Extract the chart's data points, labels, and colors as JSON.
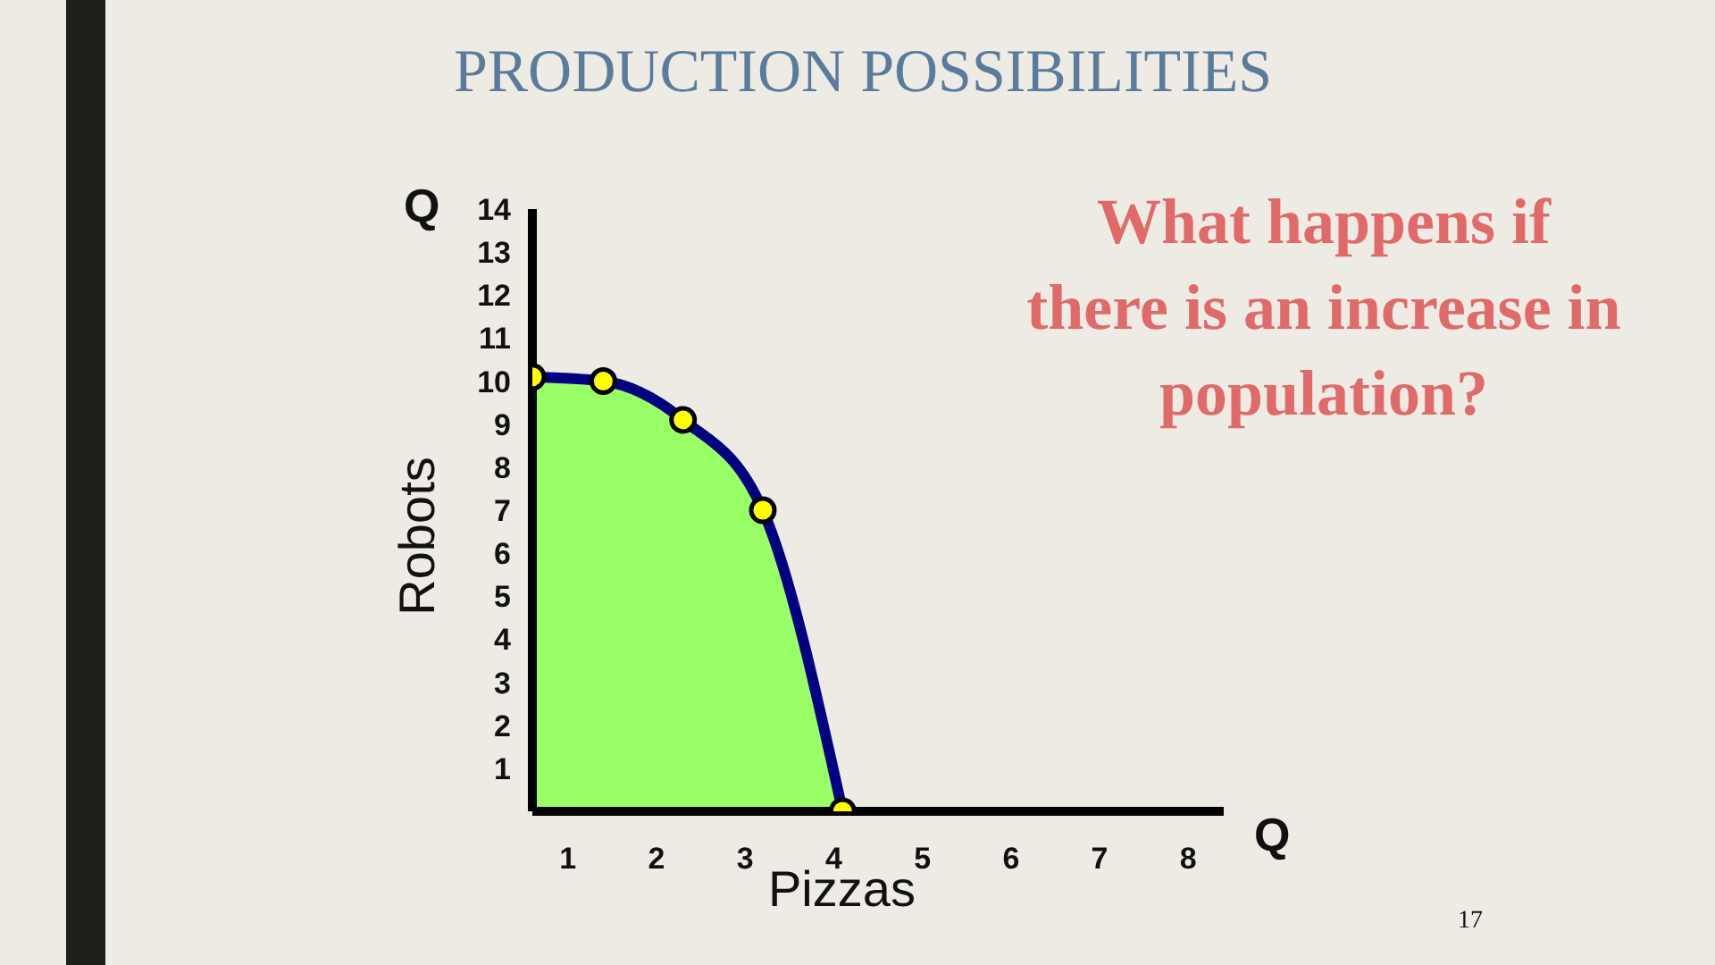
{
  "chart_data": {
    "type": "area",
    "title": "PRODUCTION POSSIBILITIES",
    "xlabel": "Pizzas",
    "ylabel": "Robots",
    "annotations": [
      "What happens if there is an increase in population?",
      "Q",
      "Q",
      "17"
    ],
    "x": [
      0.6,
      1.4,
      2.3,
      3.2,
      4.1
    ],
    "series": [
      {
        "color": "#99ff66",
        "values": [
          10.1,
          10,
          9.1,
          7,
          0
        ]
      }
    ],
    "marker": "circle",
    "xlim": [
      0.6,
      8.4
    ],
    "xticks": [
      1,
      2,
      3,
      4,
      5,
      6,
      7,
      8
    ],
    "ylim": [
      0,
      14
    ],
    "yticks": [
      1,
      2,
      3,
      4,
      5,
      6,
      7,
      8,
      9,
      10,
      11,
      12,
      13,
      14
    ]
  }
}
